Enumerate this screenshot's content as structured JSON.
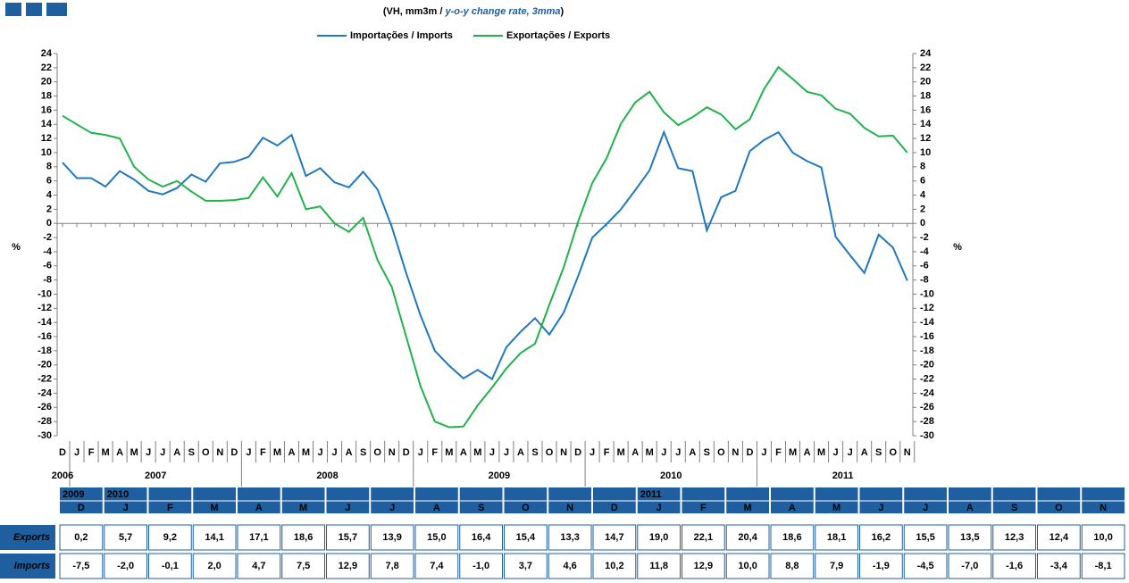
{
  "chart_data": {
    "type": "line",
    "title": "(VH, mm3m / ",
    "title_emphasis": "y-o-y change rate, 3mma",
    "title_close": ")",
    "y_label": "%",
    "y2_label": "%",
    "categories": [
      "D",
      "J",
      "F",
      "M",
      "A",
      "M",
      "J",
      "J",
      "A",
      "S",
      "O",
      "N",
      "D",
      "J",
      "F",
      "M",
      "A",
      "M",
      "J",
      "J",
      "A",
      "S",
      "O",
      "N",
      "D",
      "J",
      "F",
      "M",
      "A",
      "M",
      "J",
      "J",
      "A",
      "S",
      "O",
      "N",
      "D",
      "J",
      "F",
      "M",
      "A",
      "M",
      "J",
      "J",
      "A",
      "S",
      "O",
      "N",
      "D",
      "J",
      "F",
      "M",
      "A",
      "M",
      "J",
      "J",
      "A",
      "S",
      "O",
      "N"
    ],
    "years": [
      "2006",
      "2007",
      "2008",
      "2009",
      "2010",
      "2011"
    ],
    "series": [
      {
        "name": "Importações / Imports",
        "color": "#1f78c1",
        "values": [
          8.6,
          6.4,
          6.4,
          5.2,
          7.4,
          6.2,
          4.6,
          4.1,
          5.0,
          6.9,
          5.9,
          8.5,
          8.7,
          9.4,
          12.1,
          11.0,
          12.5,
          6.7,
          7.8,
          5.8,
          5.1,
          7.3,
          4.8,
          -0.5,
          -7.0,
          -13.0,
          -18.0,
          -20.1,
          -21.9,
          -20.7,
          -22.0,
          -17.5,
          -15.3,
          -13.4,
          -15.7,
          -12.6,
          -7.5,
          -2.0,
          -0.1,
          2.0,
          4.7,
          7.5,
          12.9,
          7.8,
          7.4,
          -1.0,
          3.7,
          4.6,
          10.2,
          11.8,
          12.9,
          10.0,
          8.8,
          7.9,
          -1.9,
          -4.5,
          -7.0,
          -1.6,
          -3.4,
          -8.1
        ]
      },
      {
        "name": "Exportações / Exports",
        "color": "#22b24c",
        "values": [
          15.2,
          14.0,
          12.8,
          12.5,
          12.0,
          8.0,
          6.2,
          5.2,
          6.0,
          4.5,
          3.2,
          3.2,
          3.3,
          3.6,
          6.5,
          3.8,
          7.1,
          2.0,
          2.4,
          0.0,
          -1.2,
          0.8,
          -5.2,
          -9.0,
          -16.0,
          -23.0,
          -28.0,
          -28.8,
          -28.7,
          -25.7,
          -23.2,
          -20.5,
          -18.3,
          -17.0,
          -11.5,
          -6.2,
          0.2,
          5.7,
          9.2,
          14.1,
          17.1,
          18.6,
          15.7,
          13.9,
          15.0,
          16.4,
          15.4,
          13.3,
          14.7,
          19.0,
          22.1,
          20.4,
          18.6,
          18.1,
          16.2,
          15.5,
          13.5,
          12.3,
          12.4,
          10.0
        ]
      }
    ],
    "ylim": [
      -30,
      24
    ],
    "yticks": [
      -30,
      -28,
      -26,
      -24,
      -22,
      -20,
      -18,
      -16,
      -14,
      -12,
      -10,
      -8,
      -6,
      -4,
      -2,
      0,
      2,
      4,
      6,
      8,
      10,
      12,
      14,
      16,
      18,
      20,
      22,
      24
    ],
    "y2lim": [
      -30,
      24
    ],
    "y2ticks": [
      -30,
      -28,
      -26,
      -24,
      -22,
      -20,
      -18,
      -16,
      -14,
      -12,
      -10,
      -8,
      -6,
      -4,
      -2,
      0,
      2,
      4,
      6,
      8,
      10,
      12,
      14,
      16,
      18,
      20,
      22,
      24
    ]
  },
  "table": {
    "years": [
      "2009",
      "2010",
      null,
      null,
      null,
      null,
      null,
      null,
      null,
      null,
      null,
      null,
      null,
      "2011",
      null,
      null,
      null,
      null,
      null,
      null,
      null,
      null,
      null,
      null
    ],
    "columns": [
      "D",
      "J",
      "F",
      "M",
      "A",
      "M",
      "J",
      "J",
      "A",
      "S",
      "O",
      "N",
      "D",
      "J",
      "F",
      "M",
      "A",
      "M",
      "J",
      "J",
      "A",
      "S",
      "O",
      "N"
    ],
    "rows": [
      {
        "label": "Exports",
        "cells": [
          "0,2",
          "5,7",
          "9,2",
          "14,1",
          "17,1",
          "18,6",
          "15,7",
          "13,9",
          "15,0",
          "16,4",
          "15,4",
          "13,3",
          "14,7",
          "19,0",
          "22,1",
          "20,4",
          "18,6",
          "18,1",
          "16,2",
          "15,5",
          "13,5",
          "12,3",
          "12,4",
          "10,0"
        ]
      },
      {
        "label": "Imports",
        "cells": [
          "-7,5",
          "-2,0",
          "-0,1",
          "2,0",
          "4,7",
          "7,5",
          "12,9",
          "7,8",
          "7,4",
          "-1,0",
          "3,7",
          "4,6",
          "10,2",
          "11,8",
          "12,9",
          "10,0",
          "8,8",
          "7,9",
          "-1,9",
          "-4,5",
          "-7,0",
          "-1,6",
          "-3,4",
          "-8,1"
        ]
      }
    ]
  }
}
